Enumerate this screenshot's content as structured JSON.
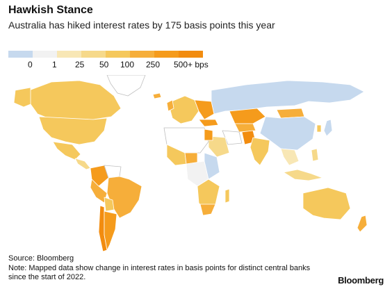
{
  "title": "Hawkish Stance",
  "subtitle": "Australia has hiked interest rates by 175 basis points this year",
  "legend": {
    "labels": [
      "0",
      "1",
      "25",
      "50",
      "100",
      "250",
      "500+ bps"
    ],
    "colors": [
      "#c6d9ee",
      "#f2f2f2",
      "#f8e7b5",
      "#f6d98a",
      "#f5c85c",
      "#f6ae3a",
      "#f59b1c",
      "#f28c0f"
    ]
  },
  "colors": {
    "ocean": "#ffffff",
    "border": "#ffffff",
    "no_data": "#ffffff",
    "no_data_stroke": "#bfbfbf"
  },
  "source": "Source: Bloomberg",
  "note": "Note: Mapped data show change in interest rates in basis points for distinct central banks since the start of 2022.",
  "brand": "Bloomberg"
}
